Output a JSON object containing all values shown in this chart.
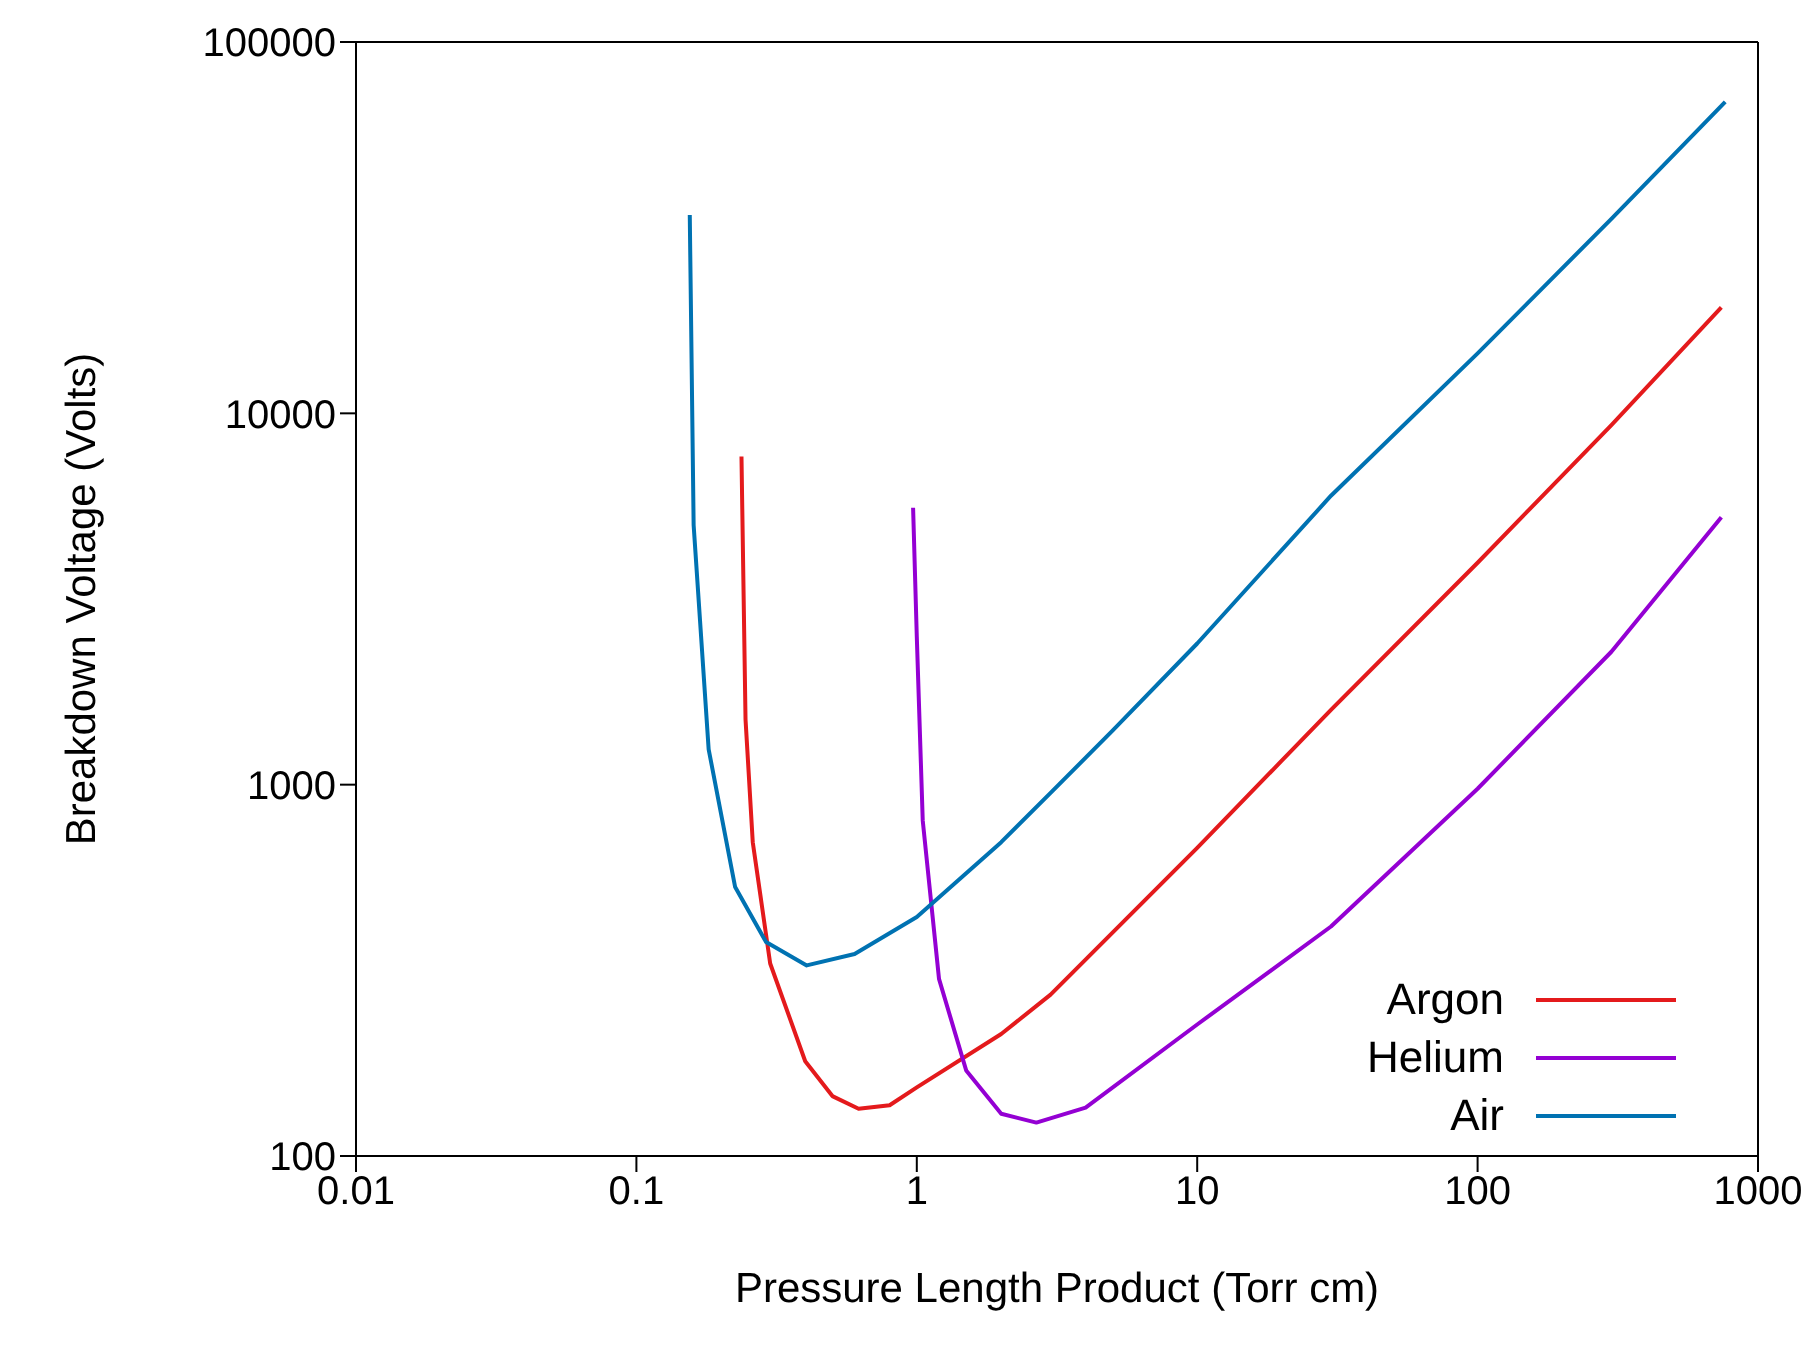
{
  "chart_data": {
    "type": "line",
    "xlabel": "Pressure Length Product (Torr cm)",
    "ylabel": "Breakdown Voltage (Volts)",
    "log": "xy",
    "xlim": [
      0.01,
      1000
    ],
    "xticks": [
      0.01,
      0.1,
      1,
      10,
      100,
      1000
    ],
    "ylim": [
      100,
      100000
    ],
    "yticks": [
      100,
      1000,
      10000,
      100000
    ],
    "legend": "bottom right",
    "marker": "none",
    "line_style": "solid",
    "series": [
      {
        "name": "Argon",
        "color": "#e41a1c",
        "x": [
          0.237,
          0.245,
          0.26,
          0.3,
          0.4,
          0.5,
          0.62,
          0.8,
          1,
          2,
          3,
          10,
          30,
          100,
          300,
          740
        ],
        "values": [
          7650,
          1500,
          700,
          330,
          180,
          145,
          134,
          137,
          153,
          213,
          272,
          676,
          1590,
          3960,
          9300,
          19300
        ]
      },
      {
        "name": "Helium",
        "color": "#9400d3",
        "x": [
          0.97,
          1.0,
          1.05,
          1.2,
          1.5,
          2,
          2.67,
          4,
          10,
          30,
          100,
          300,
          740
        ],
        "values": [
          5570,
          2500,
          800,
          300,
          170,
          130,
          123,
          135,
          226,
          415,
          975,
          2280,
          5250
        ]
      },
      {
        "name": "Air",
        "color": "#0072b2",
        "x": [
          0.155,
          0.16,
          0.181,
          0.225,
          0.29,
          0.405,
          0.6,
          1,
          2,
          3,
          5,
          10,
          30,
          100,
          300,
          764
        ],
        "values": [
          34200,
          5000,
          1245,
          530,
          377,
          326,
          350,
          440,
          700,
          950,
          1400,
          2400,
          6000,
          14500,
          33400,
          69000
        ]
      }
    ]
  }
}
